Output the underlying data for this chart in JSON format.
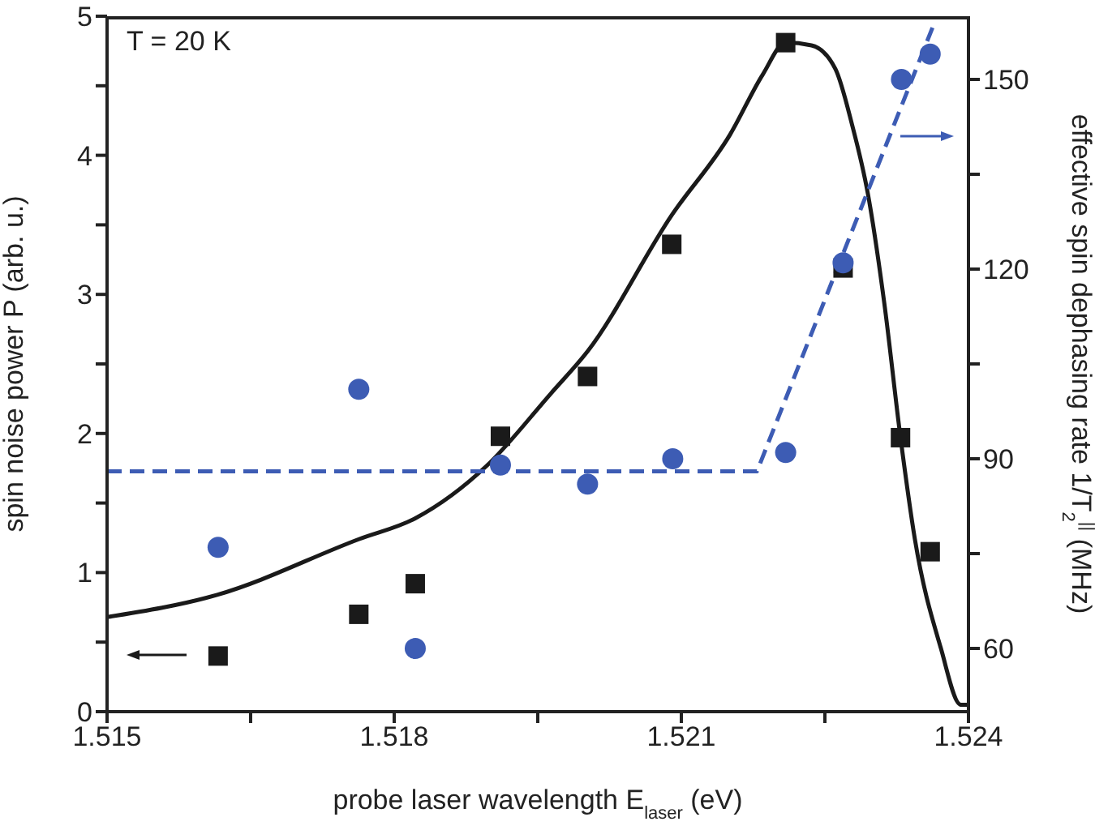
{
  "chart_data": {
    "type": "scatter",
    "xlabel": "probe laser wavelength E$_{laser}$ (eV)",
    "ylabel": "spin noise power P (arb. u.)",
    "y2label": "effective spin dephasing rate 1/T$_{2}$$^{||}$ (MHz)",
    "annotations": [
      "T = 20 K"
    ],
    "xlim": [
      1.515,
      1.524
    ],
    "xticks": [
      1.515,
      {
        "value": 1.5165,
        "label": null
      },
      1.518,
      {
        "value": 1.5195,
        "label": null
      },
      1.521,
      {
        "value": 1.5225,
        "label": null
      },
      1.524
    ],
    "ylim": [
      0,
      5
    ],
    "yticks": [
      0,
      {
        "value": 0.5,
        "label": null
      },
      1,
      {
        "value": 1.5,
        "label": null
      },
      2,
      {
        "value": 2.5,
        "label": null
      },
      3,
      {
        "value": 3.5,
        "label": null
      },
      4,
      {
        "value": 4.5,
        "label": null
      },
      5
    ],
    "y2lim": [
      50,
      160
    ],
    "y2ticks": [
      60,
      {
        "value": 75,
        "label": null
      },
      90,
      {
        "value": 105,
        "label": null
      },
      120,
      {
        "value": 135,
        "label": null
      },
      150
    ],
    "series": [
      {
        "marker": "square",
        "color": "#1a1a1a",
        "x": [
          1.51616,
          1.51763,
          1.51822,
          1.51911,
          1.52002,
          1.5209,
          1.52209,
          1.52269,
          1.52329,
          1.5236
        ],
        "values": [
          0.4,
          0.7,
          0.92,
          1.98,
          2.41,
          3.36,
          4.81,
          3.19,
          1.97,
          1.15
        ]
      },
      {
        "marker": "circle",
        "axis": "y2",
        "color": "#3d5cb4",
        "x": [
          1.51616,
          1.51763,
          1.51822,
          1.51911,
          1.52002,
          1.52091,
          1.52209,
          1.52269,
          1.5233,
          1.5236
        ],
        "values": [
          76,
          101,
          60,
          89,
          86,
          90,
          91,
          121,
          150,
          154
        ]
      },
      {
        "type": "line",
        "marker": "none",
        "line_style": "solid",
        "color": "#1a1a1a",
        "x": [
          1.515,
          1.51615,
          1.51763,
          1.51822,
          1.51897,
          1.51964,
          1.52002,
          1.5209,
          1.52151,
          1.52185,
          1.52209,
          1.52236,
          1.52261,
          1.52278,
          1.52295,
          1.52312,
          1.52329,
          1.52344,
          1.52371,
          1.52392,
          1.524
        ],
        "values": [
          0.68,
          0.84,
          1.24,
          1.39,
          1.77,
          2.29,
          2.59,
          3.57,
          4.15,
          4.58,
          4.81,
          4.79,
          4.62,
          4.23,
          3.72,
          2.94,
          1.97,
          1.24,
          0.46,
          0.05,
          0.05
        ]
      },
      {
        "type": "line",
        "marker": "none",
        "line_style": "dashed",
        "axis": "y2",
        "color": "#3d5cb4",
        "x": [
          1.515,
          1.52179,
          1.52364
        ],
        "values": [
          88,
          88,
          158.8
        ]
      }
    ]
  }
}
